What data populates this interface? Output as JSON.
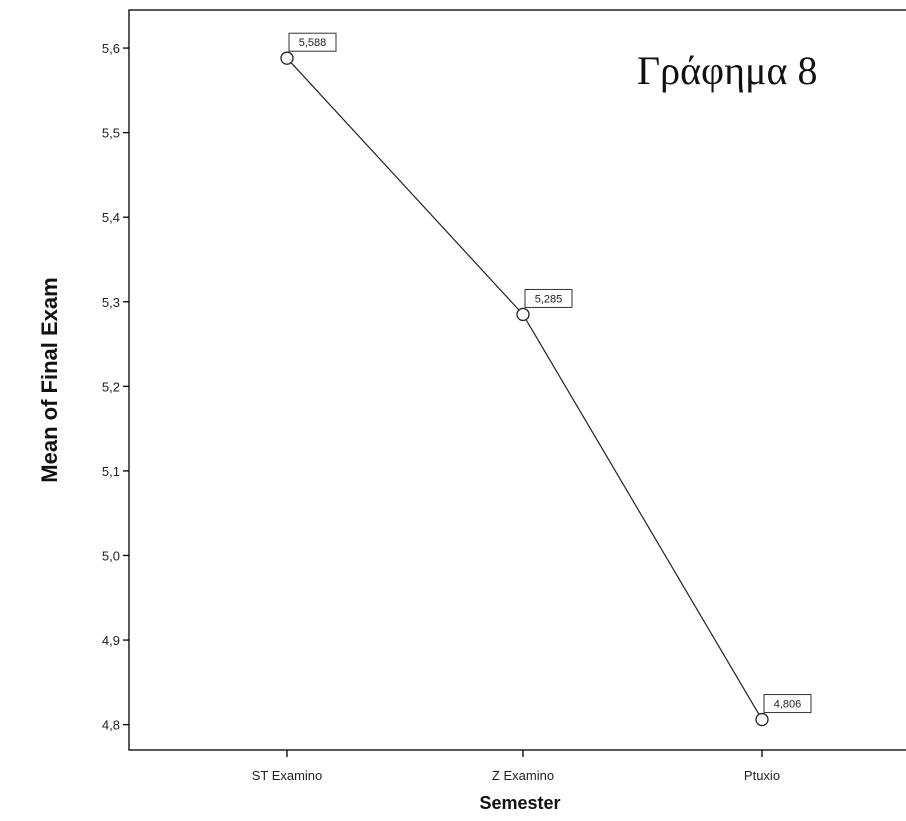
{
  "chart_data": {
    "type": "line",
    "title": "Γράφημα 8",
    "xlabel": "Semester",
    "ylabel": "Mean of Final Exam",
    "categories": [
      "ST Examino",
      "Z Examino",
      "Ptuxio"
    ],
    "series": [
      {
        "values": [
          5.588,
          5.285,
          4.806
        ]
      }
    ],
    "data_labels": [
      "5,588",
      "5,285",
      "4,806"
    ],
    "ylim": [
      4.77,
      5.645
    ],
    "yticks": [
      4.8,
      4.9,
      5.0,
      5.1,
      5.2,
      5.3,
      5.4,
      5.5,
      5.6
    ],
    "ytick_labels": [
      "4,8",
      "4,9",
      "5,0",
      "5,1",
      "5,2",
      "5,3",
      "5,4",
      "5,5",
      "5,6"
    ],
    "grid": false,
    "legend": "none",
    "colors": {
      "line": "#222222",
      "marker_fill": "#ffffff",
      "axis": "#000000"
    }
  }
}
